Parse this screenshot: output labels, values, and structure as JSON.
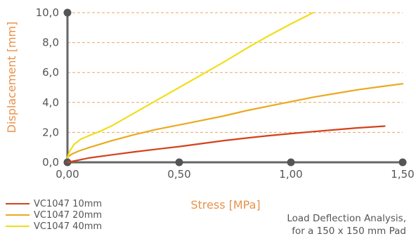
{
  "chart_data": {
    "type": "line",
    "xlabel": "Stress [MPa]",
    "ylabel": "Displacement [mm]",
    "xlim": [
      0,
      1.5
    ],
    "ylim": [
      0,
      10
    ],
    "x_ticks": [
      "0,00",
      "0,50",
      "1,00",
      "1,50"
    ],
    "y_ticks": [
      "0,0",
      "2,0",
      "4,0",
      "6,0",
      "8,0",
      "10,0"
    ],
    "grid": "horizontal-dashed",
    "legend_position": "bottom-left",
    "series": [
      {
        "name": "VC1047 10mm",
        "color": "#d4411c",
        "x": [
          0.0,
          0.05,
          0.1,
          0.2,
          0.3,
          0.4,
          0.5,
          0.6,
          0.7,
          0.8,
          0.9,
          1.0,
          1.1,
          1.2,
          1.3,
          1.42
        ],
        "y": [
          0.0,
          0.15,
          0.3,
          0.5,
          0.7,
          0.88,
          1.05,
          1.25,
          1.45,
          1.62,
          1.78,
          1.92,
          2.05,
          2.18,
          2.3,
          2.42
        ]
      },
      {
        "name": "VC1047 20mm",
        "color": "#eba91f",
        "x": [
          0.0,
          0.02,
          0.05,
          0.1,
          0.2,
          0.3,
          0.4,
          0.5,
          0.6,
          0.7,
          0.8,
          0.9,
          1.0,
          1.1,
          1.2,
          1.3,
          1.4,
          1.5
        ],
        "y": [
          0.35,
          0.55,
          0.75,
          1.0,
          1.45,
          1.85,
          2.2,
          2.5,
          2.8,
          3.1,
          3.45,
          3.75,
          4.05,
          4.35,
          4.6,
          4.85,
          5.05,
          5.25
        ]
      },
      {
        "name": "VC1047 40mm",
        "color": "#f2dd1b",
        "x": [
          0.0,
          0.01,
          0.03,
          0.06,
          0.1,
          0.15,
          0.2,
          0.3,
          0.4,
          0.5,
          0.6,
          0.7,
          0.8,
          0.9,
          1.0,
          1.1
        ],
        "y": [
          0.3,
          0.75,
          1.2,
          1.55,
          1.8,
          2.1,
          2.45,
          3.3,
          4.15,
          5.0,
          5.85,
          6.7,
          7.6,
          8.45,
          9.25,
          10.0
        ]
      }
    ]
  },
  "note": {
    "line1": "Load Deflection Analysis,",
    "line2": "for a 150 x 150 mm Pad"
  }
}
